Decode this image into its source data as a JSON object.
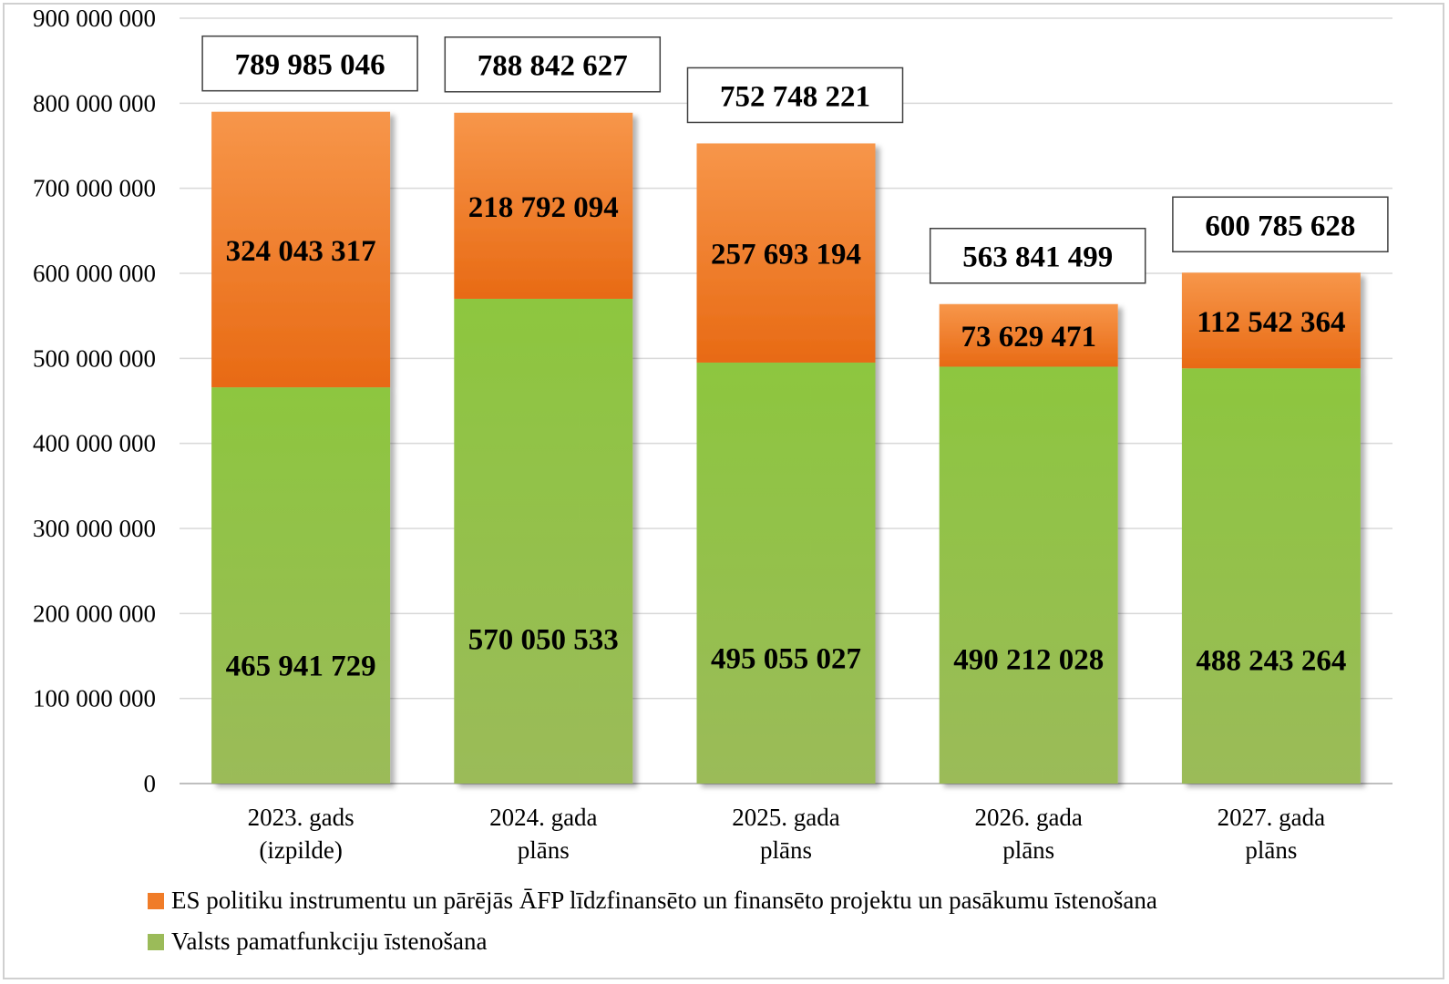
{
  "chart_data": {
    "type": "bar",
    "stacked": true,
    "categories": [
      [
        "2023. gads",
        "(izpilde)"
      ],
      [
        "2024. gada",
        "plāns"
      ],
      [
        "2025. gada",
        "plāns"
      ],
      [
        "2026. gada",
        "plāns"
      ],
      [
        "2027. gada",
        "plāns"
      ]
    ],
    "series": [
      {
        "name": "Valsts pamatfunkciju īstenošana",
        "color": "#9bbb59",
        "values": [
          465941729,
          570050533,
          495055027,
          490212028,
          488243264
        ],
        "labels": [
          "465 941 729",
          "570 050 533",
          "495 055 027",
          "490 212 028",
          "488 243 264"
        ]
      },
      {
        "name": "ES politiku instrumentu un pārējās ĀFP līdzfinansēto un finansēto projektu un pasākumu īstenošana",
        "color": "#f07c28",
        "values": [
          324043317,
          218792094,
          257693194,
          73629471,
          112542364
        ],
        "labels": [
          "324 043 317",
          "218 792 094",
          "257 693 194",
          "73 629 471",
          "112 542 364"
        ]
      }
    ],
    "totals": {
      "values": [
        789985046,
        788842627,
        752748221,
        563841499,
        600785628
      ],
      "labels": [
        "789 985 046",
        "788 842 627",
        "752 748 221",
        "563 841 499",
        "600 785 628"
      ]
    },
    "ylim": [
      0,
      900000000
    ],
    "yticks": [
      0,
      100000000,
      200000000,
      300000000,
      400000000,
      500000000,
      600000000,
      700000000,
      800000000,
      900000000
    ],
    "ytick_labels": [
      "0",
      "100 000 000",
      "200 000 000",
      "300 000 000",
      "400 000 000",
      "500 000 000",
      "600 000 000",
      "700 000 000",
      "800 000 000",
      "900 000 000"
    ],
    "grid": true,
    "legend_position": "bottom",
    "legend_order": [
      1,
      0
    ]
  }
}
